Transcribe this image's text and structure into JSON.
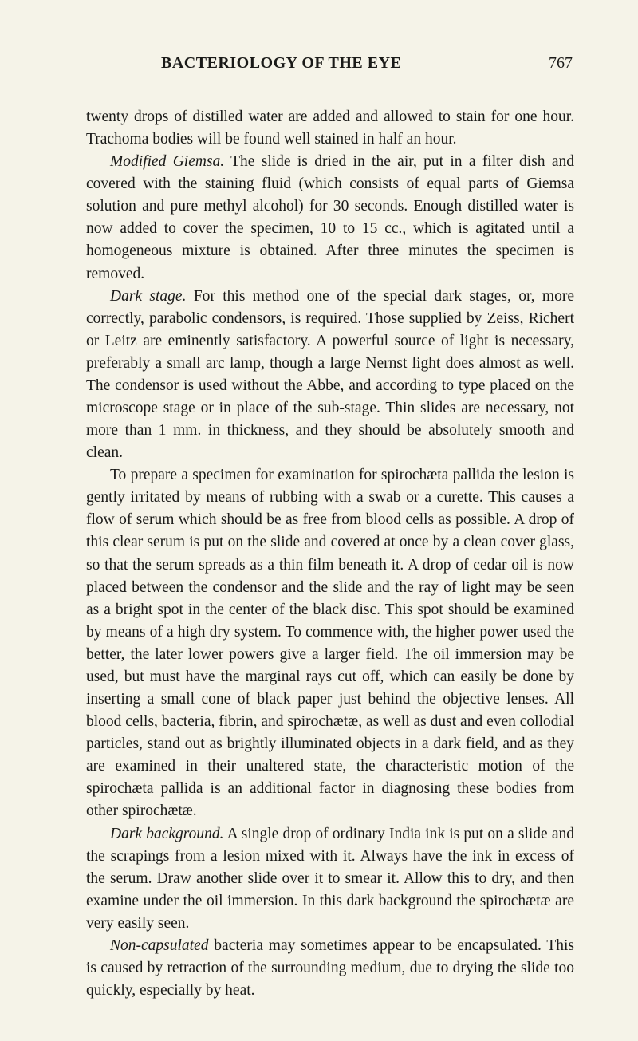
{
  "header": {
    "title": "BACTERIOLOGY OF THE EYE",
    "page_number": "767"
  },
  "paragraphs": {
    "p1": "twenty drops of distilled water are added and allowed to stain for one hour. Trachoma bodies will be found well stained in half an hour.",
    "p2_lead": "Modified Giemsa.",
    "p2_rest": " The slide is dried in the air, put in a filter dish and covered with the staining fluid (which consists of equal parts of Giemsa solution and pure methyl alcohol) for 30 seconds. Enough distilled water is now added to cover the specimen, 10 to 15 cc., which is agitated until a homogeneous mixture is obtained. After three minutes the specimen is removed.",
    "p3_lead": "Dark stage.",
    "p3_rest": " For this method one of the special dark stages, or, more correctly, parabolic condensors, is required. Those supplied by Zeiss, Richert or Leitz are eminently satisfactory. A powerful source of light is necessary, preferably a small arc lamp, though a large Nernst light does almost as well. The condensor is used without the Abbe, and according to type placed on the microscope stage or in place of the sub-stage. Thin slides are necessary, not more than 1 mm. in thickness, and they should be absolutely smooth and clean.",
    "p4": "To prepare a specimen for examination for spirochæta pallida the lesion is gently irritated by means of rubbing with a swab or a curette. This causes a flow of serum which should be as free from blood cells as possible. A drop of this clear serum is put on the slide and covered at once by a clean cover glass, so that the serum spreads as a thin film beneath it. A drop of cedar oil is now placed between the condensor and the slide and the ray of light may be seen as a bright spot in the center of the black disc. This spot should be examined by means of a high dry system. To commence with, the higher power used the better, the later lower powers give a larger field. The oil immersion may be used, but must have the marginal rays cut off, which can easily be done by inserting a small cone of black paper just behind the objective lenses. All blood cells, bacteria, fibrin, and spirochætæ, as well as dust and even collodial particles, stand out as brightly illuminated objects in a dark field, and as they are examined in their unaltered state, the characteristic motion of the spirochæta pallida is an additional factor in diagnosing these bodies from other spirochætæ.",
    "p5_lead": "Dark background.",
    "p5_rest": " A single drop of ordinary India ink is put on a slide and the scrapings from a lesion mixed with it. Always have the ink in excess of the serum. Draw another slide over it to smear it. Allow this to dry, and then examine under the oil immersion. In this dark background the spirochætæ are very easily seen.",
    "p6_lead": "Non-capsulated",
    "p6_rest": " bacteria may sometimes appear to be encapsulated. This is caused by retraction of the surrounding medium, due to drying the slide too quickly, especially by heat."
  }
}
